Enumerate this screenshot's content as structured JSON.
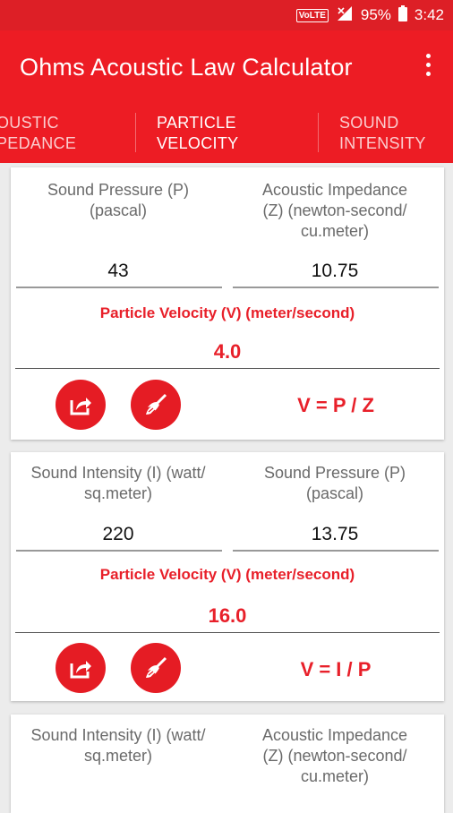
{
  "status": {
    "network": "VoLTE",
    "battery": "95%",
    "time": "3:42"
  },
  "app": {
    "title": "Ohms Acoustic Law Calculator"
  },
  "tabs": [
    {
      "label_line1": "OUSTIC",
      "label_line2": "PEDANCE"
    },
    {
      "label_line1": "PARTICLE",
      "label_line2": "VELOCITY"
    },
    {
      "label_line1": "SOUND",
      "label_line2": "INTENSITY"
    }
  ],
  "cards": [
    {
      "input1_label": [
        "Sound Pressure (P)",
        "(pascal)"
      ],
      "input1_value": "43",
      "input2_label": [
        "Acoustic Impedance",
        "(Z) (newton-second/",
        "cu.meter)"
      ],
      "input2_value": "10.75",
      "result_label": "Particle Velocity (V) (meter/second)",
      "result_value": "4.0",
      "formula": "V = P / Z"
    },
    {
      "input1_label": [
        "Sound Intensity (I) (watt/",
        "sq.meter)"
      ],
      "input1_value": "220",
      "input2_label": [
        "Sound Pressure (P)",
        "(pascal)"
      ],
      "input2_value": "13.75",
      "result_label": "Particle Velocity (V) (meter/second)",
      "result_value": "16.0",
      "formula": "V = I / P"
    },
    {
      "input1_label": [
        "Sound Intensity (I) (watt/",
        "sq.meter)"
      ],
      "input2_label": [
        "Acoustic Impedance",
        "(Z) (newton-second/",
        "cu.meter)"
      ]
    }
  ],
  "icons": {
    "share": "share-icon",
    "clear": "broom-icon",
    "menu": "more-vert-icon"
  },
  "colors": {
    "primary": "#ed1c24",
    "status": "#dd1f26",
    "accent_text": "#e8202a"
  }
}
